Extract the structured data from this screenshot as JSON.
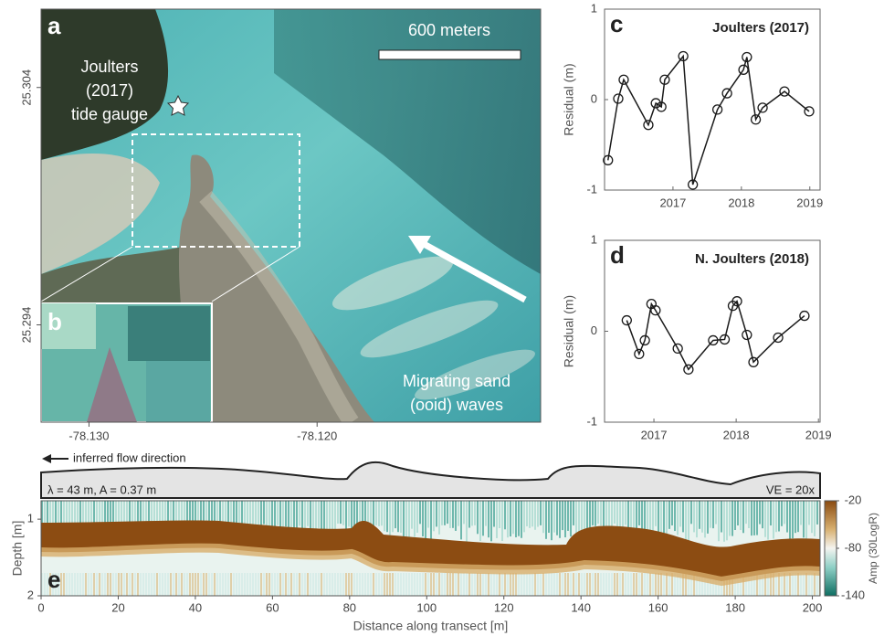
{
  "chart_data": [
    {
      "type": "image",
      "panel": "a",
      "inset_panel": "b",
      "scale_bar": "600 meters",
      "gauge_label": [
        "Joulters",
        "(2017)",
        "tide gauge"
      ],
      "wave_label": [
        "Migrating sand",
        "(ooid) waves"
      ],
      "xlim": [
        -78.1321,
        -78.1102
      ],
      "ylim": [
        25.2899,
        25.3073
      ],
      "xticks": [
        {
          "value": -78.13,
          "label": "-78.130"
        },
        {
          "value": -78.12,
          "label": "-78.120"
        }
      ],
      "yticks": [
        25.304,
        25.294
      ]
    },
    {
      "type": "line",
      "panel": "c",
      "title": "Joulters (2017)",
      "ylabel": "Residual (m)",
      "xlim": [
        2016,
        2019.15
      ],
      "xticks": [
        2017,
        2018,
        2019
      ],
      "ylim": [
        -1,
        1
      ],
      "yticks": [
        -1,
        0,
        1
      ],
      "color": "#1a1a1a",
      "x": [
        2016.05,
        2016.2,
        2016.28,
        2016.64,
        2016.75,
        2016.83,
        2016.88,
        2017.15,
        2017.29,
        2017.65,
        2017.79,
        2018.03,
        2018.08,
        2018.21,
        2018.31,
        2018.63,
        2018.99
      ],
      "values": [
        -0.67,
        0.01,
        0.22,
        -0.28,
        -0.04,
        -0.08,
        0.22,
        0.48,
        -0.94,
        -0.11,
        0.07,
        0.33,
        0.47,
        -0.22,
        -0.09,
        0.09,
        -0.13
      ]
    },
    {
      "type": "line",
      "panel": "d",
      "title": "N. Joulters (2018)",
      "ylabel": "Residual (m)",
      "xlim": [
        2016.4,
        2019.02
      ],
      "xticks": [
        2017,
        2018,
        2019
      ],
      "ylim": [
        -1,
        1
      ],
      "yticks": [
        -1,
        0,
        1
      ],
      "color": "#1a1a1a",
      "x": [
        2016.67,
        2016.82,
        2016.89,
        2016.97,
        2017.02,
        2017.29,
        2017.42,
        2017.72,
        2017.86,
        2017.96,
        2018.01,
        2018.13,
        2018.21,
        2018.51,
        2018.83
      ],
      "values": [
        0.12,
        -0.25,
        -0.1,
        0.3,
        0.23,
        -0.19,
        -0.42,
        -0.1,
        -0.09,
        0.28,
        0.33,
        -0.04,
        -0.34,
        -0.07,
        0.17
      ]
    },
    {
      "type": "echogram",
      "panel": "e",
      "flow_label": "inferred flow direction",
      "wave_params": "λ = 43 m, A = 0.37 m",
      "exaggeration": "VE = 20x",
      "xlabel": "Distance along transect [m]",
      "ylabel": "Depth [m]",
      "xlim": [
        0,
        202
      ],
      "xticks": [
        0,
        20,
        40,
        60,
        80,
        100,
        120,
        140,
        160,
        180,
        200
      ],
      "ylim": [
        0.76,
        2
      ],
      "yticks": [
        1,
        2
      ],
      "colorbar_label": "Amp (30LogR)",
      "clim": [
        -140,
        -20
      ],
      "cticks": [
        -20,
        -80,
        -140
      ]
    }
  ]
}
